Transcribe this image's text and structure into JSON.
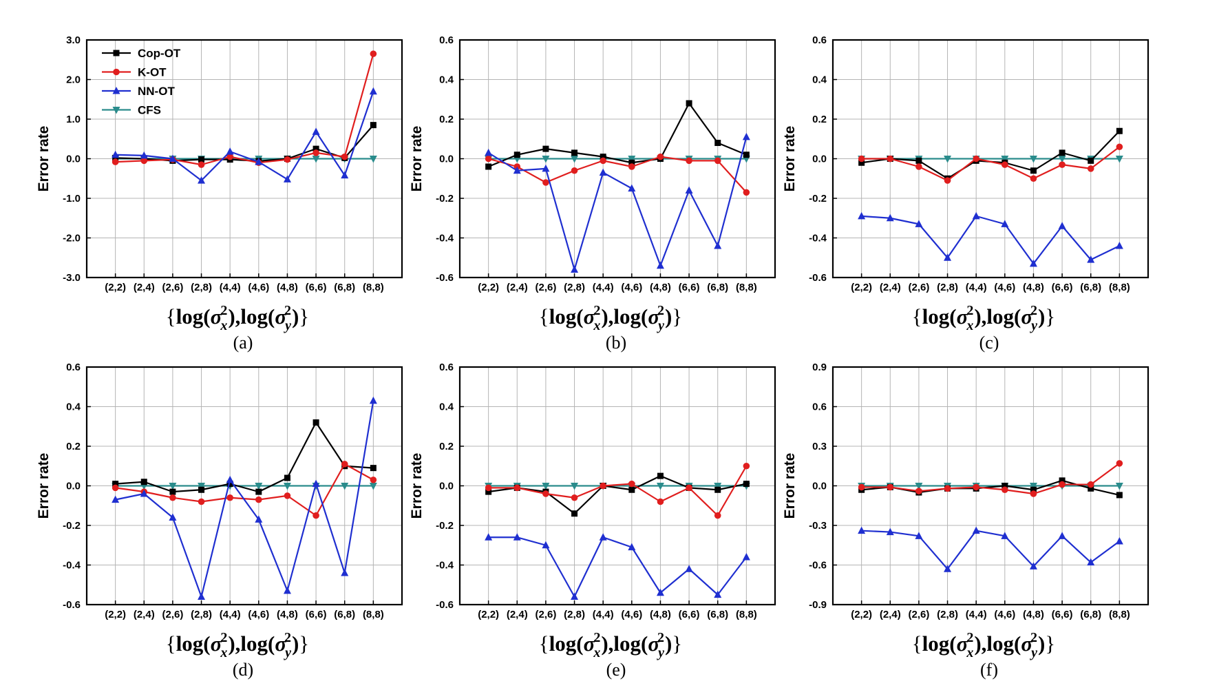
{
  "figure": {
    "colors": {
      "Cop-OT": "#000000",
      "K-OT": "#e01e1e",
      "NN-OT": "#1f2fd0",
      "CFS": "#2a8c8c"
    },
    "markers": {
      "Cop-OT": "square",
      "K-OT": "circle",
      "NN-OT": "triangle-up",
      "CFS": "triangle-down"
    }
  },
  "chart_data": [
    {
      "type": "line",
      "panel": "(a)",
      "xlabel": "{log(σx²),log(σy²)}",
      "ylabel": "Error rate",
      "categories": [
        "(2,2)",
        "(2,4)",
        "(2,6)",
        "(2,8)",
        "(4,4)",
        "(4,6)",
        "(4,8)",
        "(6,6)",
        "(6,8)",
        "(8,8)"
      ],
      "ylim": [
        -3.0,
        3.0
      ],
      "yticks": [
        "3.0",
        "2.0",
        "1.0",
        "0.0",
        "-1.0",
        "-2.0",
        "-3.0"
      ],
      "legend": [
        "Cop-OT",
        "K-OT",
        "NN-OT",
        "CFS"
      ],
      "series": [
        {
          "name": "Cop-OT",
          "values": [
            0.02,
            0.0,
            -0.05,
            -0.02,
            -0.02,
            -0.06,
            0.0,
            0.25,
            0.02,
            0.85
          ]
        },
        {
          "name": "K-OT",
          "values": [
            -0.08,
            -0.05,
            -0.02,
            -0.15,
            0.05,
            -0.1,
            -0.02,
            0.15,
            0.05,
            2.65
          ]
        },
        {
          "name": "NN-OT",
          "values": [
            0.1,
            0.08,
            0.0,
            -0.55,
            0.18,
            -0.08,
            -0.52,
            0.68,
            -0.42,
            1.7
          ]
        },
        {
          "name": "CFS",
          "values": [
            0.0,
            0.0,
            0.0,
            0.0,
            0.0,
            0.0,
            0.0,
            0.0,
            0.0,
            0.0
          ]
        }
      ]
    },
    {
      "type": "line",
      "panel": "(b)",
      "xlabel": "{log(σx²),log(σy²)}",
      "ylabel": "Error rate",
      "categories": [
        "(2,2)",
        "(2,4)",
        "(2,6)",
        "(2,8)",
        "(4,4)",
        "(4,6)",
        "(4,8)",
        "(6,6)",
        "(6,8)",
        "(8,8)"
      ],
      "ylim": [
        -0.6,
        0.6
      ],
      "yticks": [
        "0.6",
        "0.4",
        "0.2",
        "0.0",
        "-0.2",
        "-0.4",
        "-0.6"
      ],
      "series": [
        {
          "name": "Cop-OT",
          "values": [
            -0.04,
            0.02,
            0.05,
            0.03,
            0.01,
            -0.02,
            0.0,
            0.28,
            0.08,
            0.02
          ]
        },
        {
          "name": "K-OT",
          "values": [
            0.0,
            -0.04,
            -0.12,
            -0.06,
            -0.01,
            -0.04,
            0.01,
            -0.01,
            -0.01,
            -0.17
          ]
        },
        {
          "name": "NN-OT",
          "values": [
            0.03,
            -0.06,
            -0.05,
            -0.56,
            -0.07,
            -0.15,
            -0.54,
            -0.16,
            -0.44,
            0.11
          ]
        },
        {
          "name": "CFS",
          "values": [
            0.0,
            0.0,
            0.0,
            0.0,
            0.0,
            0.0,
            0.0,
            0.0,
            0.0,
            0.0
          ]
        }
      ]
    },
    {
      "type": "line",
      "panel": "(c)",
      "xlabel": "{log(σx²),log(σy²)}",
      "ylabel": "Error rate",
      "categories": [
        "(2,2)",
        "(2,4)",
        "(2,6)",
        "(2,8)",
        "(4,4)",
        "(4,6)",
        "(4,8)",
        "(6,6)",
        "(6,8)",
        "(8,8)"
      ],
      "ylim": [
        -0.6,
        0.6
      ],
      "yticks": [
        "0.6",
        "0.4",
        "0.2",
        "0.0",
        "-0.2",
        "-0.4",
        "-0.6"
      ],
      "series": [
        {
          "name": "Cop-OT",
          "values": [
            -0.02,
            0.0,
            -0.01,
            -0.1,
            -0.01,
            -0.02,
            -0.06,
            0.03,
            -0.01,
            0.14
          ]
        },
        {
          "name": "K-OT",
          "values": [
            0.0,
            0.0,
            -0.04,
            -0.11,
            0.0,
            -0.03,
            -0.1,
            -0.03,
            -0.05,
            0.06
          ]
        },
        {
          "name": "NN-OT",
          "values": [
            -0.29,
            -0.3,
            -0.33,
            -0.5,
            -0.29,
            -0.33,
            -0.53,
            -0.34,
            -0.51,
            -0.44
          ]
        },
        {
          "name": "CFS",
          "values": [
            0.0,
            0.0,
            0.0,
            0.0,
            0.0,
            0.0,
            0.0,
            0.0,
            0.0,
            0.0
          ]
        }
      ]
    },
    {
      "type": "line",
      "panel": "(d)",
      "xlabel": "{log(σx²),log(σy²)}",
      "ylabel": "Error rate",
      "categories": [
        "(2,2)",
        "(2,4)",
        "(2,6)",
        "(2,8)",
        "(4,4)",
        "(4,6)",
        "(4,8)",
        "(6,6)",
        "(6,8)",
        "(8,8)"
      ],
      "ylim": [
        -0.6,
        0.6
      ],
      "yticks": [
        "0.6",
        "0.4",
        "0.2",
        "0.0",
        "-0.2",
        "-0.4",
        "-0.6"
      ],
      "series": [
        {
          "name": "Cop-OT",
          "values": [
            0.01,
            0.02,
            -0.03,
            -0.02,
            0.01,
            -0.03,
            0.04,
            0.32,
            0.1,
            0.09
          ]
        },
        {
          "name": "K-OT",
          "values": [
            -0.01,
            -0.03,
            -0.06,
            -0.08,
            -0.06,
            -0.07,
            -0.05,
            -0.15,
            0.11,
            0.03
          ]
        },
        {
          "name": "NN-OT",
          "values": [
            -0.07,
            -0.04,
            -0.16,
            -0.56,
            0.03,
            -0.17,
            -0.53,
            0.01,
            -0.44,
            0.43
          ]
        },
        {
          "name": "CFS",
          "values": [
            0.0,
            0.0,
            0.0,
            0.0,
            0.0,
            0.0,
            0.0,
            0.0,
            0.0,
            0.0
          ]
        }
      ]
    },
    {
      "type": "line",
      "panel": "(e)",
      "xlabel": "{log(σx²),log(σy²)}",
      "ylabel": "Error rate",
      "categories": [
        "(2,2)",
        "(2,4)",
        "(2,6)",
        "(2,8)",
        "(4,4)",
        "(4,6)",
        "(4,8)",
        "(6,6)",
        "(6,8)",
        "(8,8)"
      ],
      "ylim": [
        -0.6,
        0.6
      ],
      "yticks": [
        "0.6",
        "0.4",
        "0.2",
        "0.0",
        "-0.2",
        "-0.4",
        "-0.6"
      ],
      "series": [
        {
          "name": "Cop-OT",
          "values": [
            -0.03,
            -0.01,
            -0.03,
            -0.14,
            0.0,
            -0.02,
            0.05,
            -0.01,
            -0.02,
            0.01
          ]
        },
        {
          "name": "K-OT",
          "values": [
            -0.01,
            -0.01,
            -0.04,
            -0.06,
            0.0,
            0.01,
            -0.08,
            -0.01,
            -0.15,
            0.1
          ]
        },
        {
          "name": "NN-OT",
          "values": [
            -0.26,
            -0.26,
            -0.3,
            -0.56,
            -0.26,
            -0.31,
            -0.54,
            -0.42,
            -0.55,
            -0.36
          ]
        },
        {
          "name": "CFS",
          "values": [
            0.0,
            0.0,
            0.0,
            0.0,
            0.0,
            0.0,
            0.0,
            0.0,
            0.0,
            0.0
          ]
        }
      ]
    },
    {
      "type": "line",
      "panel": "(f)",
      "xlabel": "{log(σx²),log(σy²)}",
      "ylabel": "Error rate",
      "categories": [
        "(2,2)",
        "(2,4)",
        "(2,6)",
        "(2,8)",
        "(4,4)",
        "(4,6)",
        "(4,8)",
        "(6,6)",
        "(6,8)",
        "(8,8)"
      ],
      "ylim": [
        -0.9,
        0.9
      ],
      "yticks": [
        "0.9",
        "0.6",
        "0.3",
        "0.0",
        "-0.3",
        "-0.6",
        "-0.9"
      ],
      "series": [
        {
          "name": "Cop-OT",
          "values": [
            -0.03,
            -0.01,
            -0.05,
            -0.02,
            -0.02,
            0.0,
            -0.03,
            0.04,
            -0.02,
            -0.07
          ]
        },
        {
          "name": "K-OT",
          "values": [
            -0.01,
            -0.01,
            -0.04,
            -0.02,
            -0.01,
            -0.03,
            -0.06,
            0.01,
            0.01,
            0.17
          ]
        },
        {
          "name": "NN-OT",
          "values": [
            -0.34,
            -0.35,
            -0.38,
            -0.63,
            -0.34,
            -0.38,
            -0.61,
            -0.38,
            -0.58,
            -0.42
          ]
        },
        {
          "name": "CFS",
          "values": [
            0.0,
            0.0,
            0.0,
            0.0,
            0.0,
            0.0,
            0.0,
            0.0,
            0.0,
            0.0
          ]
        }
      ]
    }
  ]
}
